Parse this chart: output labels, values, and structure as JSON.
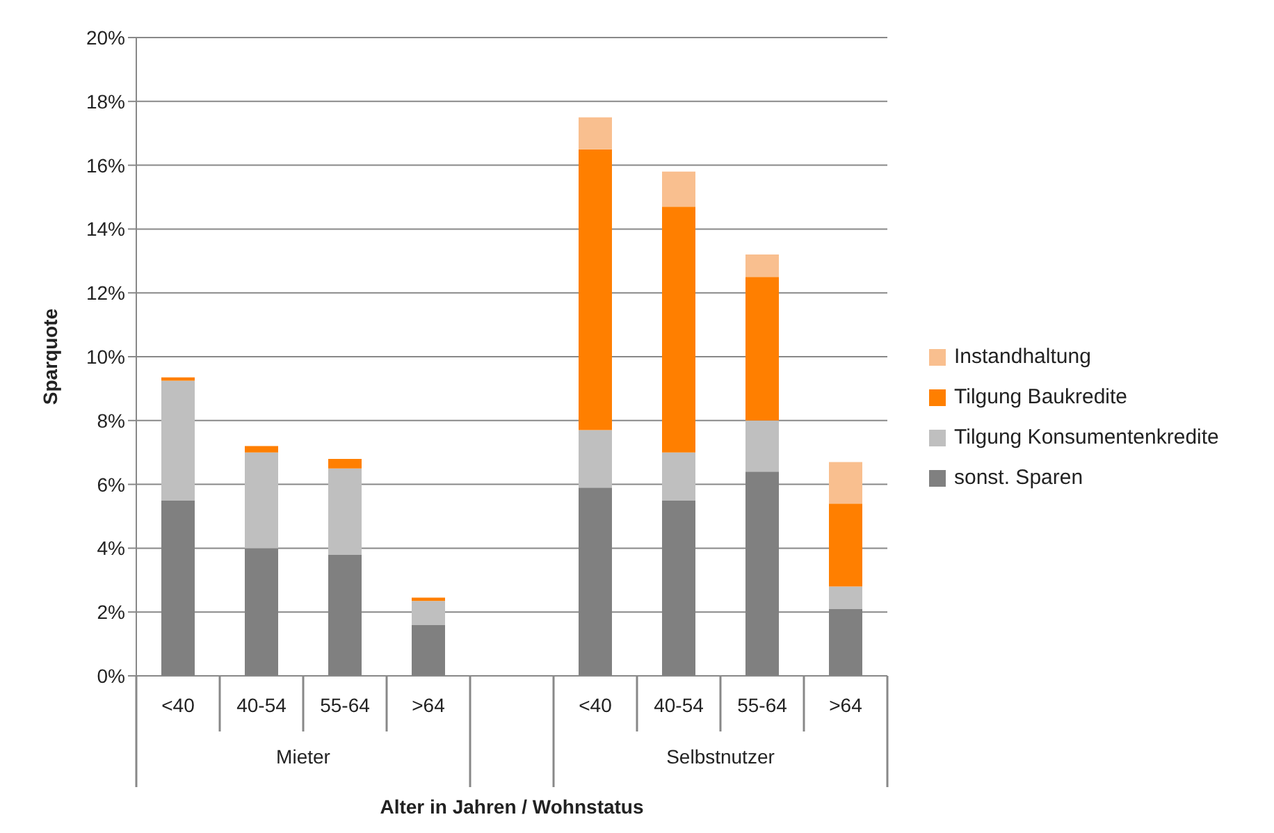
{
  "chart_data": {
    "type": "bar",
    "stacked": true,
    "ylabel": "Sparquote",
    "xlabel": "Alter in Jahren / Wohnstatus",
    "categories": [
      "<40",
      "40-54",
      "55-64",
      ">64",
      null,
      "<40",
      "40-54",
      "55-64",
      ">64"
    ],
    "annotations": [
      "Mieter",
      "Selbstnutzer"
    ],
    "series": [
      {
        "name": "sonst. Sparen",
        "color": "#808080",
        "values": [
          5.5,
          4.0,
          3.8,
          1.6,
          null,
          5.9,
          5.5,
          6.4,
          2.1
        ]
      },
      {
        "name": "Tilgung Konsumentenkredite",
        "color": "#bfbfbf",
        "values": [
          3.75,
          3.0,
          2.7,
          0.75,
          null,
          1.8,
          1.5,
          1.6,
          0.7
        ]
      },
      {
        "name": "Tilgung Baukredite",
        "color": "#ff7f00",
        "values": [
          0.1,
          0.2,
          0.3,
          0.1,
          null,
          8.8,
          7.7,
          4.5,
          2.6
        ]
      },
      {
        "name": "Instandhaltung",
        "color": "#f9bf8f",
        "values": [
          0,
          0,
          0,
          0,
          null,
          1.0,
          1.1,
          0.7,
          1.3
        ]
      }
    ],
    "ylim": [
      0,
      20
    ],
    "yticks": [
      {
        "value": 0,
        "label": "0%"
      },
      {
        "value": 2,
        "label": "2%"
      },
      {
        "value": 4,
        "label": "4%"
      },
      {
        "value": 6,
        "label": "6%"
      },
      {
        "value": 8,
        "label": "8%"
      },
      {
        "value": 10,
        "label": "10%"
      },
      {
        "value": 12,
        "label": "12%"
      },
      {
        "value": 14,
        "label": "14%"
      },
      {
        "value": 16,
        "label": "16%"
      },
      {
        "value": 18,
        "label": "18%"
      },
      {
        "value": 20,
        "label": "20%"
      }
    ],
    "grid": "y",
    "legend": "right"
  }
}
